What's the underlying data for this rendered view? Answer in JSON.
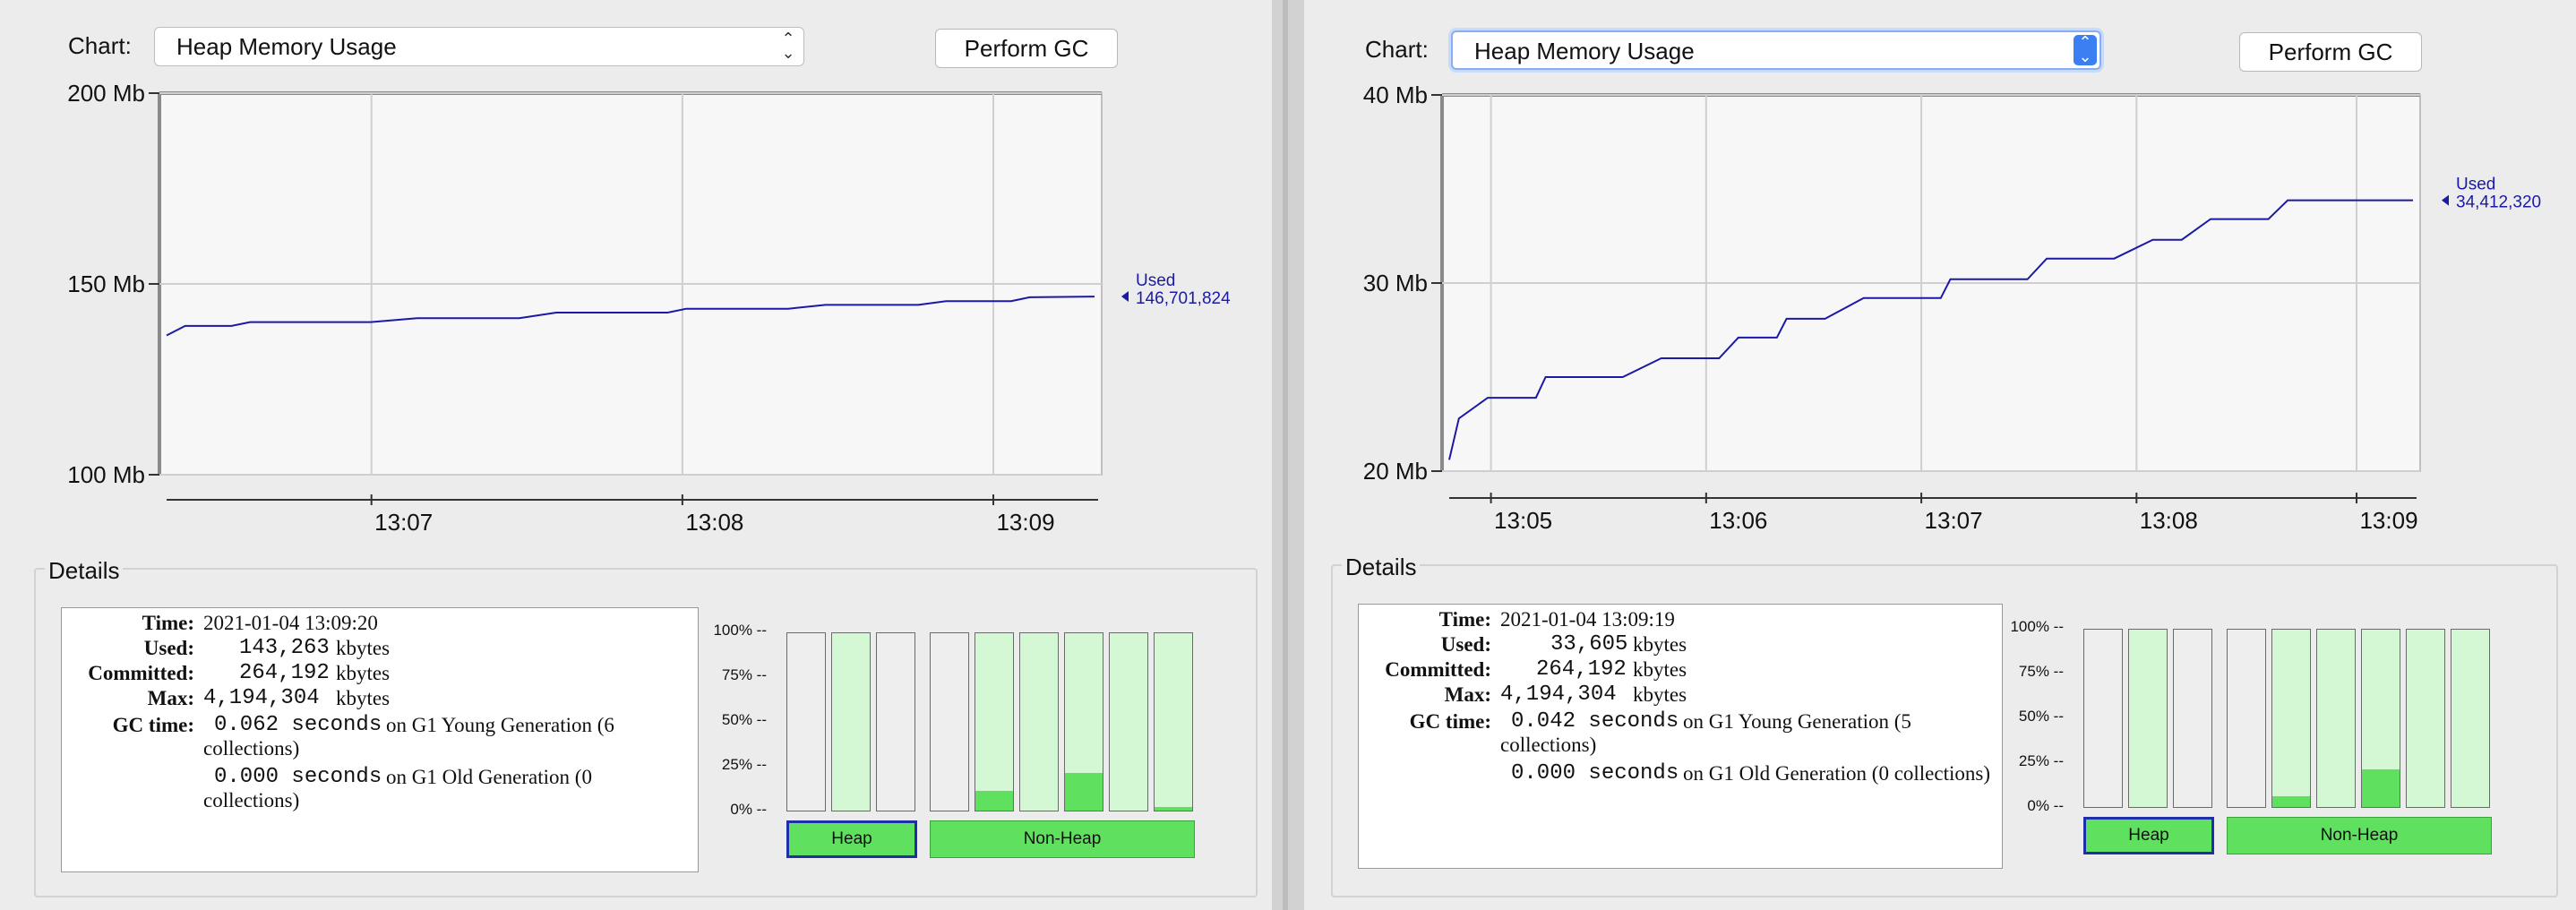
{
  "panels": [
    {
      "chart_label": "Chart:",
      "chart_select": "Heap Memory Usage",
      "gc_button": "Perform GC",
      "details_title": "Details",
      "details": {
        "time_key": "Time:",
        "time": "2021-01-04 13:09:20",
        "used_key": "Used:",
        "used": "143,263",
        "used_unit": "kbytes",
        "committed_key": "Committed:",
        "committed": "264,192",
        "committed_unit": "kbytes",
        "max_key": "Max:",
        "max": "4,194,304",
        "max_unit": "kbytes",
        "gc_key": "GC time:",
        "gc1_value": "0.062 seconds",
        "gc1_text": "on G1 Young Generation (6",
        "gc1_text2": "collections)",
        "gc2_value": "0.000 seconds",
        "gc2_text": "on G1 Old Generation (0",
        "gc2_text2": "collections)"
      },
      "memory_pools": {
        "ticks": [
          "100% --",
          "75% --",
          "50% --",
          "25% --",
          "0% --"
        ],
        "heap_fills": [
          0,
          0,
          0
        ],
        "nonheap_fills": [
          0,
          0.11,
          0,
          0.21,
          0,
          0.02
        ],
        "heap_button": "Heap",
        "nonheap_button": "Non-Heap"
      },
      "chart_data": {
        "type": "line",
        "ylabel_ticks": [
          "200 Mb",
          "150 Mb",
          "100 Mb"
        ],
        "ylim": [
          100,
          200
        ],
        "x_ticks": [
          "13:07",
          "13:08",
          "13:09"
        ],
        "grid": true,
        "series": [
          {
            "name": "Used",
            "x": [
              0,
              0.02,
              0.07,
              0.09,
              0.22,
              0.27,
              0.38,
              0.42,
              0.54,
              0.56,
              0.67,
              0.71,
              0.81,
              0.84,
              0.91,
              0.93,
              1.0
            ],
            "values": [
              136.5,
              139,
              139,
              140,
              140,
              141,
              141,
              142.5,
              142.5,
              143.5,
              143.5,
              144.5,
              144.5,
              145.5,
              145.5,
              146.5,
              146.7
            ]
          }
        ],
        "annotation_label": "Used",
        "annotation_value": "146,701,824"
      }
    },
    {
      "chart_label": "Chart:",
      "chart_select": "Heap Memory Usage",
      "gc_button": "Perform GC",
      "details_title": "Details",
      "details": {
        "time_key": "Time:",
        "time": "2021-01-04 13:09:19",
        "used_key": "Used:",
        "used": "33,605",
        "used_unit": "kbytes",
        "committed_key": "Committed:",
        "committed": "264,192",
        "committed_unit": "kbytes",
        "max_key": "Max:",
        "max": "4,194,304",
        "max_unit": "kbytes",
        "gc_key": "GC time:",
        "gc1_value": "0.042 seconds",
        "gc1_text": "on G1 Young Generation (5",
        "gc1_text2": "collections)",
        "gc2_value": "0.000 seconds",
        "gc2_text": "on G1 Old Generation (0 collections)",
        "gc2_text2": ""
      },
      "memory_pools": {
        "ticks": [
          "100% --",
          "75% --",
          "50% --",
          "25% --",
          "0% --"
        ],
        "heap_fills": [
          0,
          0,
          0
        ],
        "nonheap_fills": [
          0,
          0.06,
          0,
          0.21,
          0,
          0
        ],
        "heap_button": "Heap",
        "nonheap_button": "Non-Heap"
      },
      "chart_data": {
        "type": "line",
        "ylabel_ticks": [
          "40 Mb",
          "30 Mb",
          "20 Mb"
        ],
        "ylim": [
          20,
          40
        ],
        "x_ticks": [
          "13:05",
          "13:06",
          "13:07",
          "13:08",
          "13:09"
        ],
        "grid": true,
        "series": [
          {
            "name": "Used",
            "x": [
              0,
              0.01,
              0.04,
              0.09,
              0.1,
              0.18,
              0.22,
              0.28,
              0.3,
              0.34,
              0.35,
              0.39,
              0.43,
              0.51,
              0.52,
              0.6,
              0.62,
              0.69,
              0.73,
              0.76,
              0.79,
              0.85,
              0.87,
              0.92,
              0.94,
              1.0
            ],
            "values": [
              20.6,
              22.8,
              23.9,
              23.9,
              25,
              25,
              26,
              26,
              27.1,
              27.1,
              28.1,
              28.1,
              29.2,
              29.2,
              30.2,
              30.2,
              31.3,
              31.3,
              32.3,
              32.3,
              33.4,
              33.4,
              34.4,
              34.4,
              34.4,
              34.4
            ]
          }
        ],
        "annotation_label": "Used",
        "annotation_value": "34,412,320"
      }
    }
  ],
  "colors": {
    "line": "#1a1aa6",
    "fill_green": "#5fe05f",
    "light_green": "#d4f7d4"
  }
}
